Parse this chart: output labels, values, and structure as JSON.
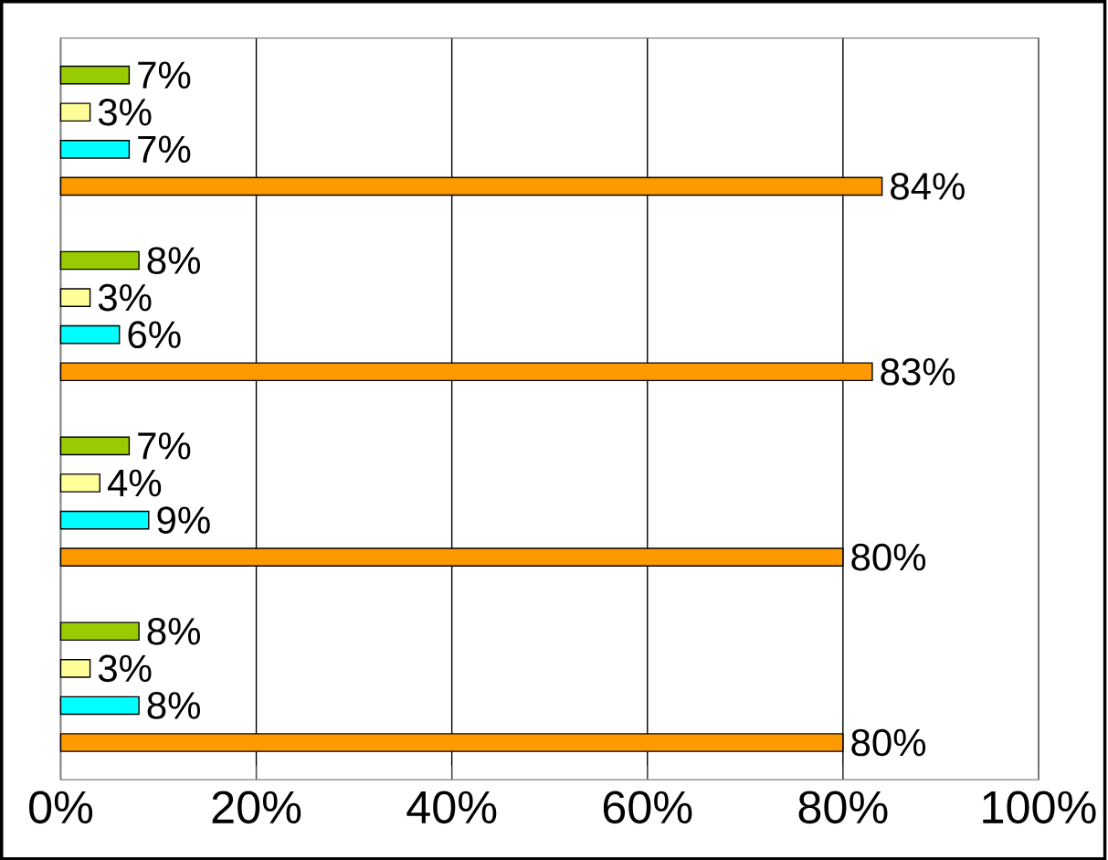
{
  "chart_data": {
    "type": "bar",
    "orientation": "horizontal",
    "categories": [
      null,
      null,
      null,
      null
    ],
    "series": [
      {
        "color": "#99cc00",
        "values": [
          7,
          8,
          7,
          8
        ],
        "value_labels": [
          "7%",
          "8%",
          "7%",
          "8%"
        ]
      },
      {
        "color": "#ffff99",
        "values": [
          3,
          3,
          4,
          3
        ],
        "value_labels": [
          "3%",
          "3%",
          "4%",
          "3%"
        ]
      },
      {
        "color": "#00ffff",
        "values": [
          7,
          6,
          9,
          8
        ],
        "value_labels": [
          "7%",
          "6%",
          "9%",
          "8%"
        ]
      },
      {
        "color": "#ff9900",
        "values": [
          84,
          83,
          80,
          80
        ],
        "value_labels": [
          "84%",
          "83%",
          "80%",
          "80%"
        ]
      }
    ],
    "xlim": [
      0,
      100
    ],
    "xticks": [
      {
        "value": 0,
        "label": "0%"
      },
      {
        "value": 20,
        "label": "20%"
      },
      {
        "value": 40,
        "label": "40%"
      },
      {
        "value": 60,
        "label": "60%"
      },
      {
        "value": 80,
        "label": "80%"
      },
      {
        "value": 100,
        "label": "100%"
      }
    ],
    "grid": "x"
  }
}
